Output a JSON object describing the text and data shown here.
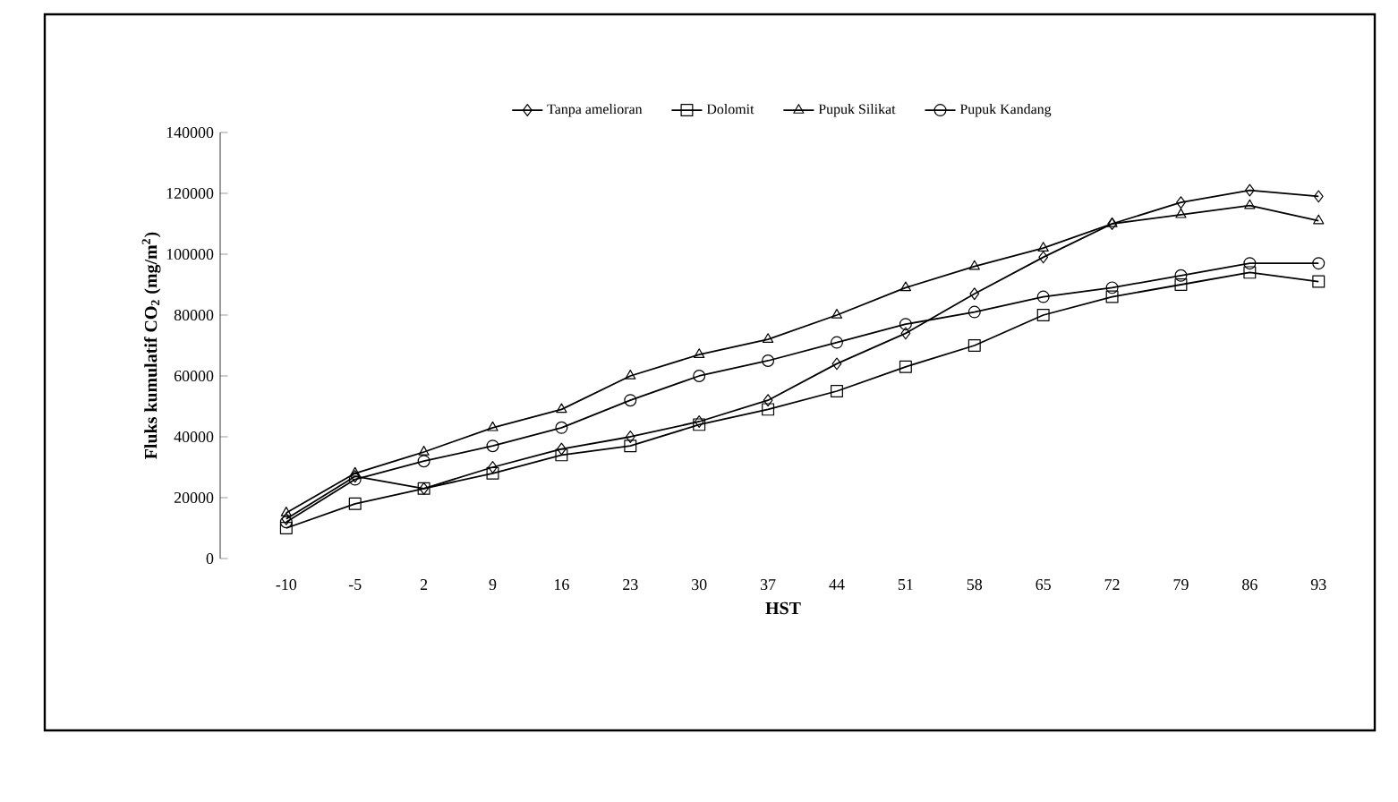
{
  "chart_data": {
    "type": "line",
    "xlabel": "HST",
    "ylabel": "Fluks kumulatif CO$_{2}$ (mg/m$^{2}$)",
    "categories": [
      "-10",
      "-5",
      "2",
      "9",
      "16",
      "23",
      "30",
      "37",
      "44",
      "51",
      "58",
      "65",
      "72",
      "79",
      "86",
      "93"
    ],
    "ylim": [
      0,
      140000
    ],
    "yticks": [
      0,
      20000,
      40000,
      60000,
      80000,
      100000,
      120000,
      140000
    ],
    "legend": "top",
    "grid": false,
    "line_style": "solid",
    "series": [
      {
        "name": "Tanpa amelioran",
        "color": "#000000",
        "marker": "diamond",
        "values": [
          13000,
          27000,
          23000,
          30000,
          36000,
          40000,
          45000,
          52000,
          64000,
          74000,
          87000,
          99000,
          110000,
          117000,
          121000,
          119000
        ]
      },
      {
        "name": "Dolomit",
        "color": "#000000",
        "marker": "square",
        "values": [
          10000,
          18000,
          23000,
          28000,
          34000,
          37000,
          44000,
          49000,
          55000,
          63000,
          70000,
          80000,
          86000,
          90000,
          94000,
          91000
        ]
      },
      {
        "name": "Pupuk Silikat",
        "color": "#000000",
        "marker": "triangle",
        "values": [
          15000,
          28000,
          35000,
          43000,
          49000,
          60000,
          67000,
          72000,
          80000,
          89000,
          96000,
          102000,
          110000,
          113000,
          116000,
          111000
        ]
      },
      {
        "name": "Pupuk Kandang",
        "color": "#000000",
        "marker": "circle",
        "values": [
          12000,
          26000,
          32000,
          37000,
          43000,
          52000,
          60000,
          65000,
          71000,
          77000,
          81000,
          86000,
          89000,
          93000,
          97000,
          97000
        ]
      }
    ]
  }
}
